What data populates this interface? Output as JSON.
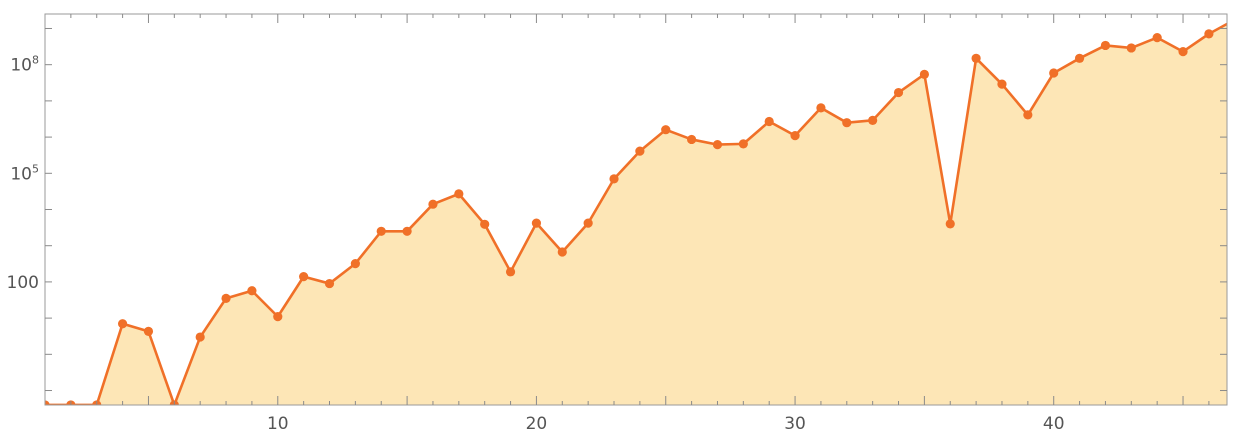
{
  "chart_data": {
    "type": "area",
    "scale": {
      "x": "linear",
      "y": "log10"
    },
    "xlim": [
      1,
      46.7
    ],
    "ylim_log10": [
      -1.4,
      9.4
    ],
    "x_ticks": [
      {
        "value": 10,
        "label": "10"
      },
      {
        "value": 20,
        "label": "20"
      },
      {
        "value": 30,
        "label": "30"
      },
      {
        "value": 40,
        "label": "40"
      }
    ],
    "y_ticks": [
      {
        "value": 100,
        "base": "100",
        "exponent": ""
      },
      {
        "value": 100000,
        "base": "10",
        "exponent": "5"
      },
      {
        "value": 100000000,
        "base": "10",
        "exponent": "8"
      }
    ],
    "grid": false,
    "legend": "none",
    "colors": {
      "line": "#f07028",
      "fill": "#fde6b6",
      "frame": "#9a9a9a",
      "text": "#555555"
    },
    "series": [
      {
        "x": [
          1,
          2,
          3,
          4,
          5,
          6,
          7,
          8,
          9,
          10,
          11,
          12,
          13,
          14,
          15,
          16,
          17,
          18,
          19,
          20,
          21,
          22,
          23,
          24,
          25,
          26,
          27,
          28,
          29,
          30,
          31,
          32,
          33,
          34,
          35,
          36,
          37,
          38,
          39,
          40,
          41,
          42,
          43,
          44,
          45,
          46,
          47
        ],
        "values": [
          0.04,
          0.04,
          0.04,
          7,
          4.3,
          0.04,
          3,
          35,
          57,
          11,
          140,
          90,
          320,
          2500,
          2500,
          14000,
          27000,
          3900,
          190,
          4200,
          670,
          4200,
          70000,
          410000,
          1600000,
          860000,
          620000,
          650000,
          2700000,
          1100000,
          6400000,
          2500000,
          2900000,
          17000000,
          54000000,
          4000,
          150000000,
          29000000,
          4100000,
          59000000,
          150000000,
          340000000,
          290000000,
          560000000,
          230000000,
          710000000,
          1750000000
        ]
      }
    ]
  }
}
